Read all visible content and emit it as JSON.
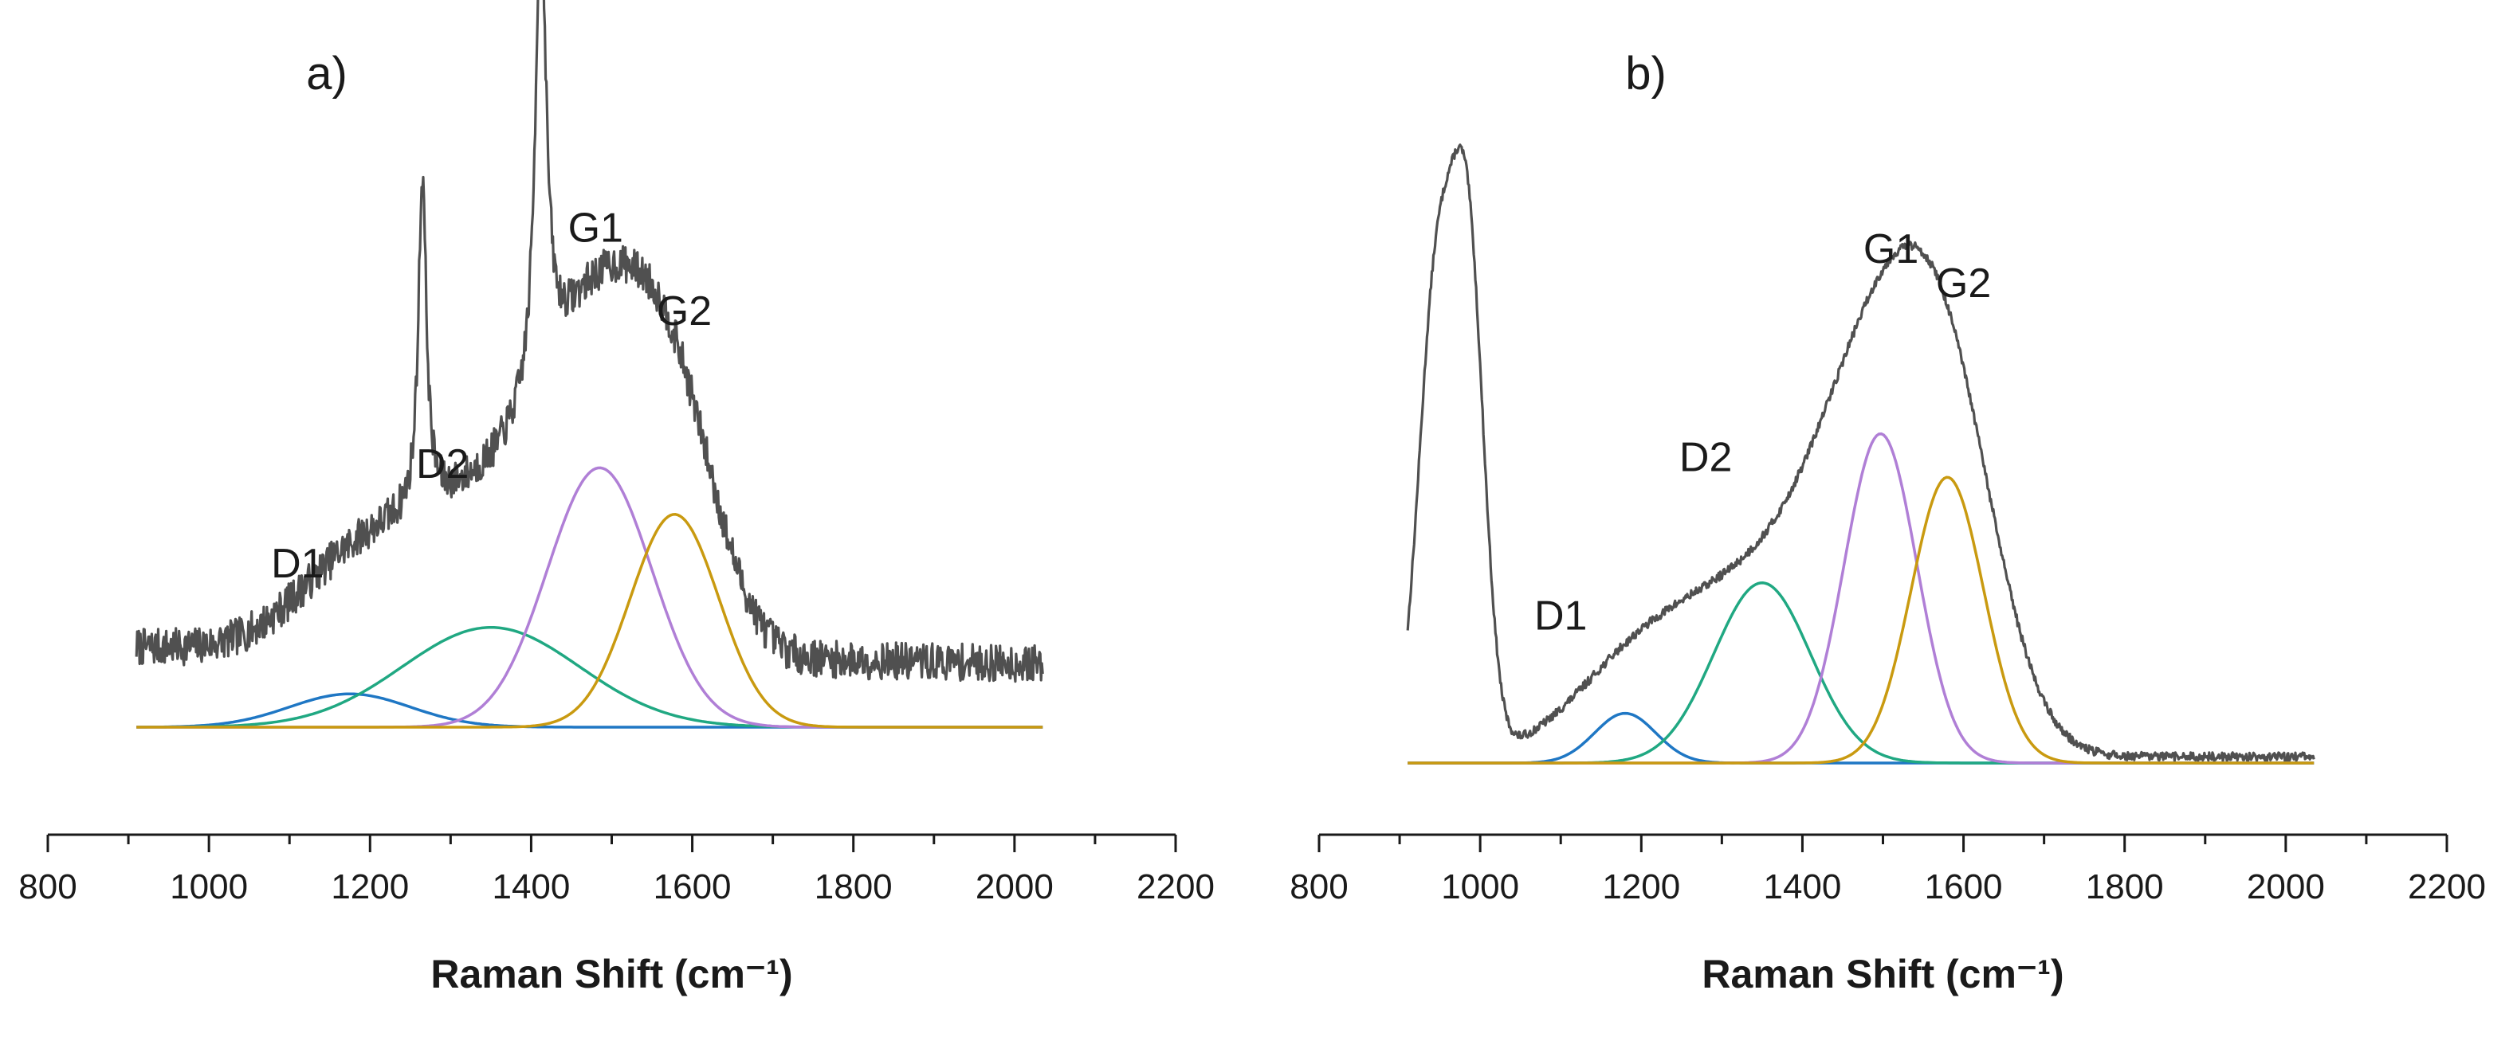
{
  "chart_data": [
    {
      "type": "line",
      "panel_label": "a)",
      "xlabel": "Raman Shift (cm⁻¹)",
      "xlim": [
        800,
        2200
      ],
      "xticks": [
        800,
        1000,
        1200,
        1400,
        1600,
        1800,
        2000,
        2200
      ],
      "ylabel": "",
      "y_axis_shown": false,
      "ylim": [
        -0.12,
        1.0
      ],
      "measured": {
        "name": "measured spectrum",
        "color": "#505050",
        "x_range": [
          910,
          2035
        ],
        "baseline": 0.12,
        "baseline_slope": -0.025,
        "noise": 0.028,
        "noise_seed": 7,
        "sharp_peaks": [
          {
            "center": 1265,
            "height": 0.5,
            "width": 6
          },
          {
            "center": 1412,
            "height": 0.72,
            "width": 8
          }
        ],
        "broad_peaks": [
          {
            "center": 1175,
            "height": 0.05,
            "width": 70
          },
          {
            "center": 1350,
            "height": 0.09,
            "width": 95
          }
        ]
      },
      "series": [
        {
          "name": "D1",
          "color": "#1f77c4",
          "center": 1175,
          "height": 0.05,
          "width": 75
        },
        {
          "name": "D2",
          "color": "#20a882",
          "center": 1350,
          "height": 0.15,
          "width": 110
        },
        {
          "name": "G1",
          "color": "#b07fd6",
          "center": 1485,
          "height": 0.39,
          "width": 65
        },
        {
          "name": "G2",
          "color": "#c99a10",
          "center": 1578,
          "height": 0.32,
          "width": 55
        }
      ],
      "annotations": [
        {
          "text": "D1",
          "x": 1110,
          "y": 0.225
        },
        {
          "text": "D2",
          "x": 1290,
          "y": 0.375
        },
        {
          "text": "G1",
          "x": 1480,
          "y": 0.73
        },
        {
          "text": "G2",
          "x": 1590,
          "y": 0.605
        }
      ]
    },
    {
      "type": "line",
      "panel_label": "b)",
      "xlabel": "Raman Shift (cm⁻¹)",
      "xlim": [
        800,
        2200
      ],
      "xticks": [
        800,
        1000,
        1200,
        1400,
        1600,
        1800,
        2000,
        2200
      ],
      "ylabel": "",
      "y_axis_shown": false,
      "ylim": [
        -0.12,
        1.0
      ],
      "measured": {
        "name": "measured spectrum",
        "color": "#505050",
        "x_range": [
          910,
          2035
        ],
        "baseline": 0.0,
        "baseline_slope": 0.0,
        "noise": 0.007,
        "noise_seed": 13,
        "sharp_peaks": [
          {
            "center": 945,
            "height": 0.73,
            "width": 22
          },
          {
            "center": 985,
            "height": 0.78,
            "width": 20
          }
        ],
        "broad_peaks": [
          {
            "center": 1180,
            "height": 0.08,
            "width": 75
          },
          {
            "center": 1350,
            "height": 0.28,
            "width": 120
          },
          {
            "center": 1500,
            "height": 0.5,
            "width": 75
          },
          {
            "center": 1585,
            "height": 0.4,
            "width": 62
          }
        ]
      },
      "series": [
        {
          "name": "D1",
          "color": "#1f77c4",
          "center": 1180,
          "height": 0.08,
          "width": 38
        },
        {
          "name": "D2",
          "color": "#20a882",
          "center": 1350,
          "height": 0.29,
          "width": 60
        },
        {
          "name": "G1",
          "color": "#b07fd6",
          "center": 1497,
          "height": 0.53,
          "width": 45
        },
        {
          "name": "G2",
          "color": "#c99a10",
          "center": 1580,
          "height": 0.46,
          "width": 45
        }
      ],
      "annotations": [
        {
          "text": "D1",
          "x": 1100,
          "y": 0.215
        },
        {
          "text": "D2",
          "x": 1280,
          "y": 0.47
        },
        {
          "text": "G1",
          "x": 1510,
          "y": 0.805
        },
        {
          "text": "G2",
          "x": 1600,
          "y": 0.75
        }
      ]
    }
  ]
}
